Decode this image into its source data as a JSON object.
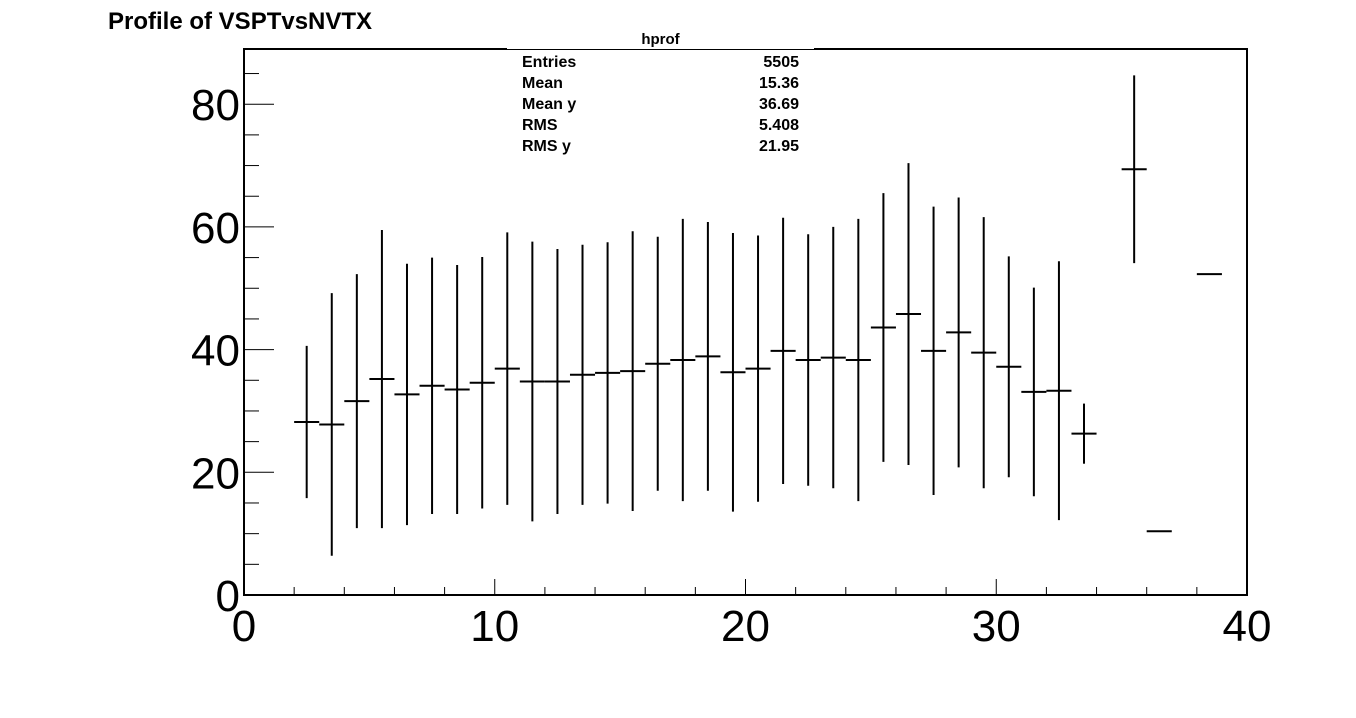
{
  "title": "Profile of VSPTvsNVTX",
  "stats_box": {
    "name": "hprof",
    "rows": [
      {
        "label": "Entries",
        "value": "5505"
      },
      {
        "label": "Mean",
        "value": "15.36"
      },
      {
        "label": "Mean y",
        "value": "36.69"
      },
      {
        "label": "RMS",
        "value": "5.408"
      },
      {
        "label": "RMS y",
        "value": "21.95"
      }
    ]
  },
  "chart_data": {
    "type": "scatter",
    "title": "Profile of VSPTvsNVTX",
    "xlabel": "",
    "ylabel": "",
    "xlim": [
      0,
      40
    ],
    "ylim": [
      0,
      89
    ],
    "x_ticks": [
      0,
      10,
      20,
      30,
      40
    ],
    "y_ticks": [
      0,
      20,
      40,
      60,
      80
    ],
    "grid": false,
    "bin_width": 1,
    "series": [
      {
        "points": [
          {
            "x": 2.5,
            "y": 28.2,
            "err": 12.4
          },
          {
            "x": 3.5,
            "y": 27.8,
            "err": 21.4
          },
          {
            "x": 4.5,
            "y": 31.6,
            "err": 20.7
          },
          {
            "x": 5.5,
            "y": 35.2,
            "err": 24.3
          },
          {
            "x": 6.5,
            "y": 32.7,
            "err": 21.3
          },
          {
            "x": 7.5,
            "y": 34.1,
            "err": 20.9
          },
          {
            "x": 8.5,
            "y": 33.5,
            "err": 20.3
          },
          {
            "x": 9.5,
            "y": 34.6,
            "err": 20.5
          },
          {
            "x": 10.5,
            "y": 36.9,
            "err": 22.2
          },
          {
            "x": 11.5,
            "y": 34.8,
            "err": 22.8
          },
          {
            "x": 12.5,
            "y": 34.8,
            "err": 21.6
          },
          {
            "x": 13.5,
            "y": 35.9,
            "err": 21.2
          },
          {
            "x": 14.5,
            "y": 36.2,
            "err": 21.3
          },
          {
            "x": 15.5,
            "y": 36.5,
            "err": 22.8
          },
          {
            "x": 16.5,
            "y": 37.7,
            "err": 20.7
          },
          {
            "x": 17.5,
            "y": 38.3,
            "err": 23.0
          },
          {
            "x": 18.5,
            "y": 38.9,
            "err": 21.9
          },
          {
            "x": 19.5,
            "y": 36.3,
            "err": 22.7
          },
          {
            "x": 20.5,
            "y": 36.9,
            "err": 21.7
          },
          {
            "x": 21.5,
            "y": 39.8,
            "err": 21.7
          },
          {
            "x": 22.5,
            "y": 38.3,
            "err": 20.5
          },
          {
            "x": 23.5,
            "y": 38.7,
            "err": 21.3
          },
          {
            "x": 24.5,
            "y": 38.3,
            "err": 23.0
          },
          {
            "x": 25.5,
            "y": 43.6,
            "err": 21.9
          },
          {
            "x": 26.5,
            "y": 45.8,
            "err": 24.6
          },
          {
            "x": 27.5,
            "y": 39.8,
            "err": 23.5
          },
          {
            "x": 28.5,
            "y": 42.8,
            "err": 22.0
          },
          {
            "x": 29.5,
            "y": 39.5,
            "err": 22.1
          },
          {
            "x": 30.5,
            "y": 37.2,
            "err": 18.0
          },
          {
            "x": 31.5,
            "y": 33.1,
            "err": 17.0
          },
          {
            "x": 32.5,
            "y": 33.3,
            "err": 21.1
          },
          {
            "x": 33.5,
            "y": 26.3,
            "err": 4.9
          },
          {
            "x": 35.5,
            "y": 69.4,
            "err": 15.3
          },
          {
            "x": 36.5,
            "y": 10.4,
            "err": 0
          },
          {
            "x": 38.5,
            "y": 52.3,
            "err": 0
          }
        ]
      }
    ]
  }
}
